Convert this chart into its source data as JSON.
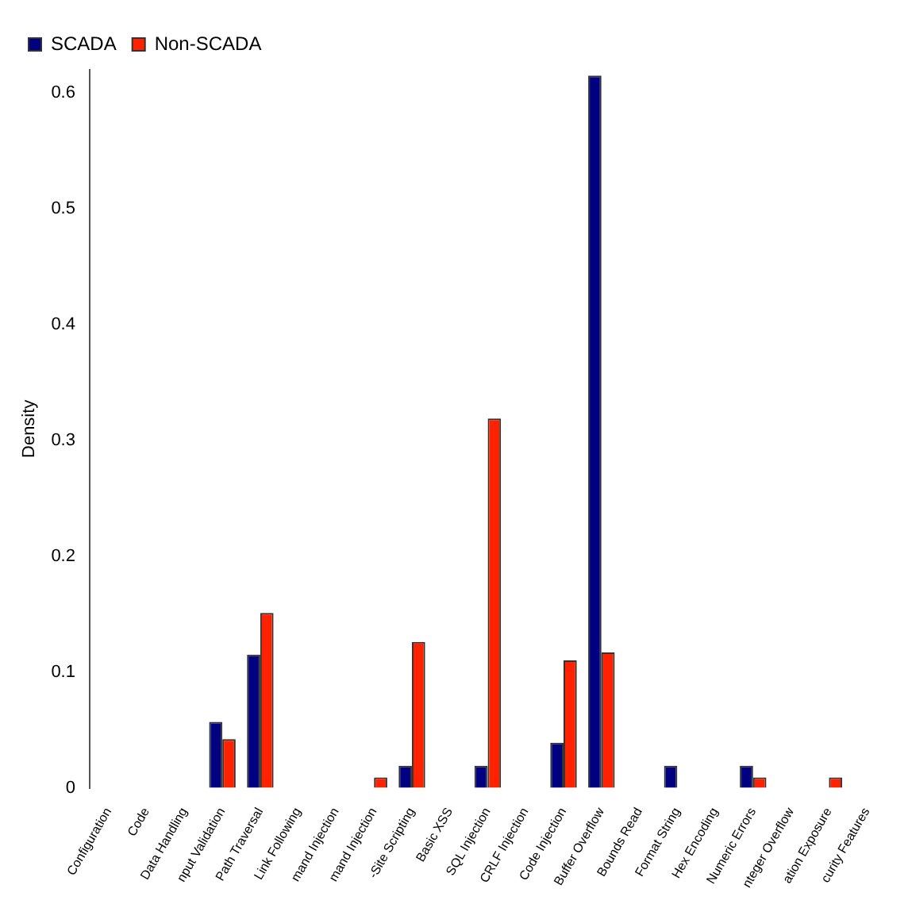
{
  "chart_data": {
    "type": "bar",
    "ylabel": "Density",
    "categories": [
      "Configuration",
      "Code",
      "Data Handling",
      "nput Validation",
      "Path Traversal",
      "Link Following",
      "mand Injection",
      "mand Injection",
      "-Site Scripting",
      "Basic XSS",
      "SQL Injection",
      "CRLF Injection",
      "Code Injection",
      "Buffer Overflow",
      "Bounds Read",
      "Format String",
      "Hex Encoding",
      "Numeric Errors",
      "nteger Overflow",
      "ation Exposure",
      "curity Features"
    ],
    "series": [
      {
        "name": "SCADA",
        "color": "#000080",
        "values": [
          0,
          0,
          0,
          0.057,
          0.115,
          0,
          0,
          0,
          0.019,
          0,
          0.019,
          0,
          0.039,
          0.615,
          0,
          0.019,
          0,
          0.019,
          0,
          0,
          0
        ]
      },
      {
        "name": "Non-SCADA",
        "color": "#ff2200",
        "values": [
          0,
          0,
          0,
          0.042,
          0.151,
          0,
          0,
          0.009,
          0.126,
          0,
          0.319,
          0,
          0.11,
          0.117,
          0,
          0,
          0,
          0.009,
          0,
          0.009,
          0
        ]
      }
    ],
    "ylim": [
      0,
      0.62
    ],
    "yticks": [
      0,
      0.1,
      0.2,
      0.3,
      0.4,
      0.5,
      0.6
    ],
    "grid": false,
    "legend": "top left"
  }
}
